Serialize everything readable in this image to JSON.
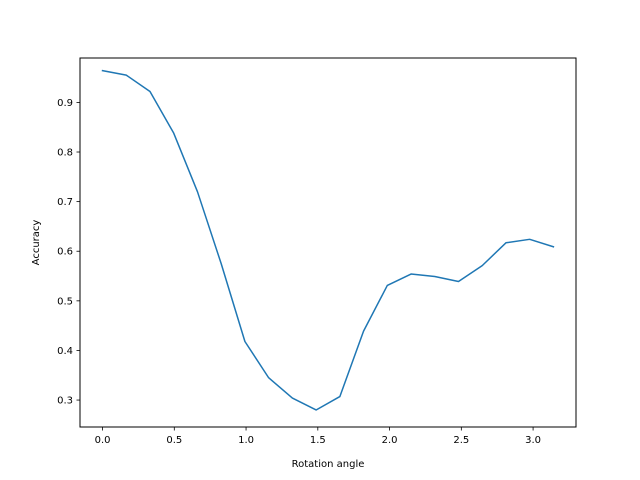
{
  "chart_data": {
    "type": "line",
    "title": "",
    "xlabel": "Rotation angle",
    "ylabel": "Accuracy",
    "xlim": [
      -0.157,
      3.299
    ],
    "ylim": [
      0.2457,
      0.9895
    ],
    "grid": false,
    "x_ticks": [
      0.0,
      0.5,
      1.0,
      1.5,
      2.0,
      2.5,
      3.0
    ],
    "x_tick_labels": [
      "0.0",
      "0.5",
      "1.0",
      "1.5",
      "2.0",
      "2.5",
      "3.0"
    ],
    "y_ticks": [
      0.3,
      0.4,
      0.5,
      0.6,
      0.7,
      0.8,
      0.9
    ],
    "y_tick_labels": [
      "0.3",
      "0.4",
      "0.5",
      "0.6",
      "0.7",
      "0.8",
      "0.9"
    ],
    "series": [
      {
        "color": "#1f77b4",
        "x": [
          0.0,
          0.1653,
          0.3307,
          0.496,
          0.6614,
          0.8267,
          0.9921,
          1.1574,
          1.3228,
          1.4881,
          1.6535,
          1.8188,
          1.9842,
          2.1495,
          2.3149,
          2.4802,
          2.6456,
          2.8109,
          2.9762,
          3.1416
        ],
        "y": [
          0.964,
          0.955,
          0.922,
          0.838,
          0.72,
          0.575,
          0.418,
          0.345,
          0.304,
          0.28,
          0.307,
          0.439,
          0.531,
          0.554,
          0.549,
          0.539,
          0.571,
          0.617,
          0.624,
          0.609
        ]
      }
    ]
  }
}
